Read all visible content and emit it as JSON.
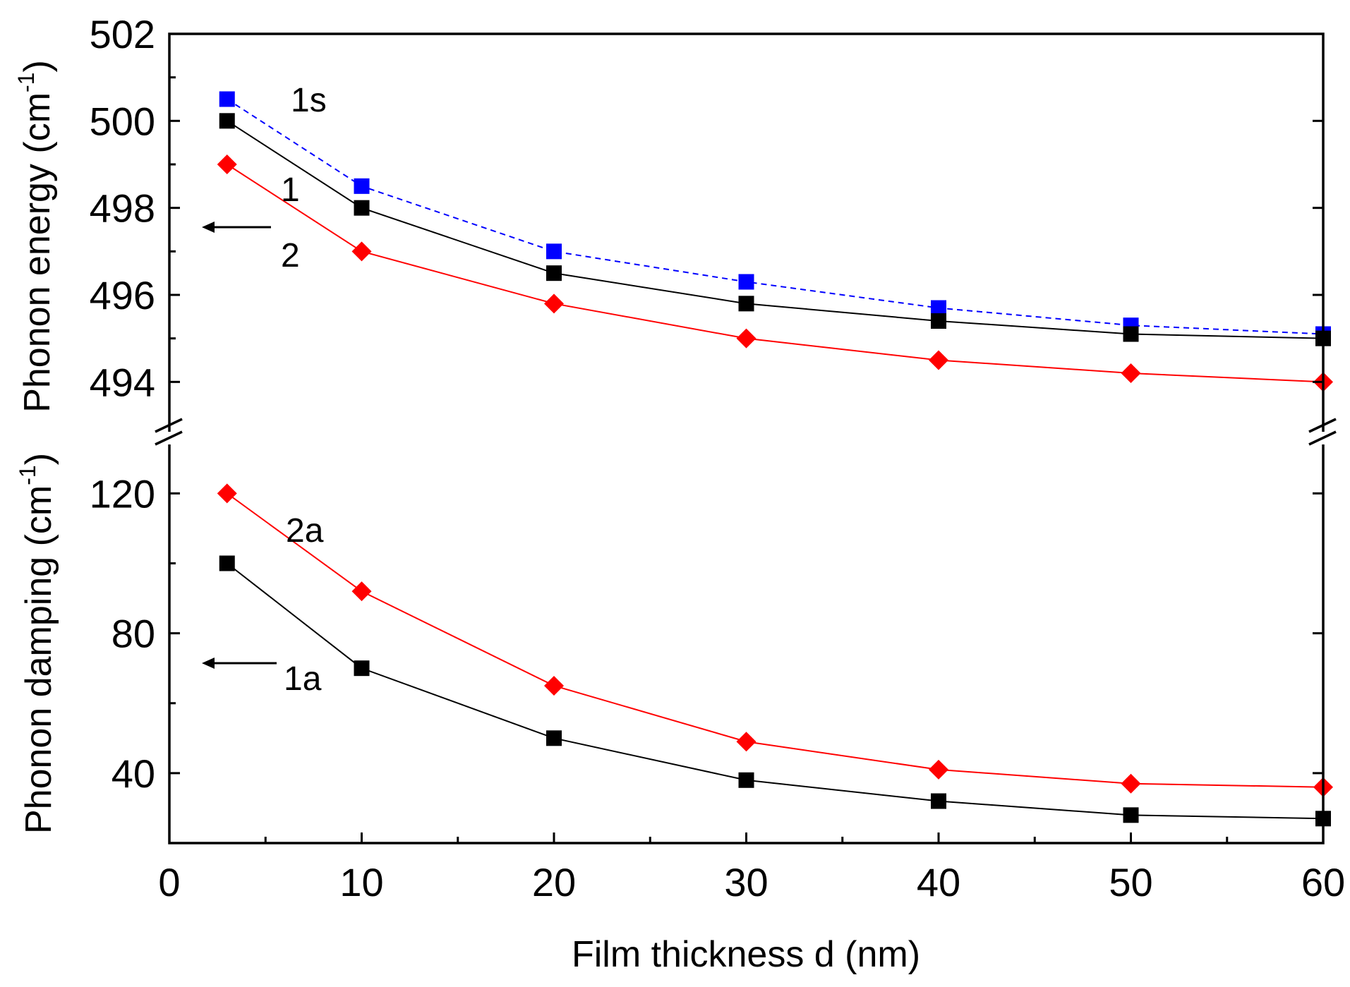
{
  "chart_data": {
    "type": "line",
    "xlabel": "Film thickness d (nm)",
    "xlim": [
      0,
      60
    ],
    "xticks": [
      0,
      10,
      20,
      30,
      40,
      50,
      60
    ],
    "panels": [
      {
        "id": "energy",
        "ylabel": "Phonon energy (cm",
        "ylabel_sup": "-1",
        "ylabel_close": ")",
        "ylim": [
          493,
          502
        ],
        "yticks": [
          494,
          496,
          498,
          500,
          502
        ],
        "series": [
          {
            "name": "1s",
            "marker": "square",
            "color": "#0000ff",
            "line_color": "#0000ff",
            "dashed": true,
            "x": [
              3,
              10,
              20,
              30,
              40,
              50,
              60
            ],
            "y": [
              500.5,
              498.5,
              497.0,
              496.3,
              495.7,
              495.3,
              495.1
            ]
          },
          {
            "name": "1",
            "marker": "square",
            "color": "#000000",
            "line_color": "#000000",
            "dashed": false,
            "x": [
              3,
              10,
              20,
              30,
              40,
              50,
              60
            ],
            "y": [
              500.0,
              498.0,
              496.5,
              495.8,
              495.4,
              495.1,
              495.0
            ]
          },
          {
            "name": "2",
            "marker": "diamond",
            "color": "#ff0000",
            "line_color": "#ff0000",
            "dashed": false,
            "x": [
              3,
              10,
              20,
              30,
              40,
              50,
              60
            ],
            "y": [
              499.0,
              497.0,
              495.8,
              495.0,
              494.5,
              494.2,
              494.0
            ]
          }
        ]
      },
      {
        "id": "damping",
        "ylabel": "Phonon damping (cm",
        "ylabel_sup": "-1",
        "ylabel_close": ")",
        "ylim": [
          20,
          135
        ],
        "yticks": [
          40,
          80,
          120
        ],
        "series": [
          {
            "name": "2a",
            "marker": "diamond",
            "color": "#ff0000",
            "line_color": "#ff0000",
            "dashed": false,
            "x": [
              3,
              10,
              20,
              30,
              40,
              50,
              60
            ],
            "y": [
              120,
              92,
              65,
              49,
              41,
              37,
              36
            ]
          },
          {
            "name": "1a",
            "marker": "square",
            "color": "#000000",
            "line_color": "#000000",
            "dashed": false,
            "x": [
              3,
              10,
              20,
              30,
              40,
              50,
              60
            ],
            "y": [
              100,
              70,
              50,
              38,
              32,
              28,
              27
            ]
          }
        ]
      }
    ],
    "annotations": [
      "1s",
      "1",
      "2",
      "2a",
      "1a"
    ],
    "arrows": [
      "left",
      "left"
    ],
    "axis_break": true,
    "grid": false
  }
}
